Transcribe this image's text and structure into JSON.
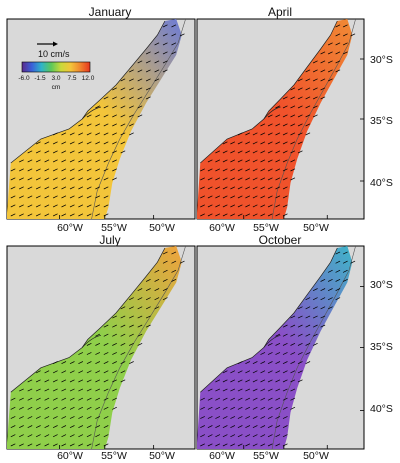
{
  "panels": [
    {
      "id": "january",
      "title": "January",
      "field_value_cm": 5.0,
      "field_color": "#f3c53a",
      "north_color": "#6c7bd6"
    },
    {
      "id": "april",
      "title": "April",
      "field_value_cm": 10.5,
      "field_color": "#f0522b",
      "north_color": "#f08a35"
    },
    {
      "id": "july",
      "title": "July",
      "field_value_cm": 0.5,
      "field_color": "#8fcf4a",
      "north_color": "#f0a23d"
    },
    {
      "id": "october",
      "title": "October",
      "field_value_cm": -5.5,
      "field_color": "#8a4fc7",
      "north_color": "#3fb5c9"
    }
  ],
  "longitude_ticks": [
    "60°W",
    "55°W",
    "50°W"
  ],
  "latitude_ticks": [
    "30°S",
    "35°S",
    "40°S"
  ],
  "scale_vector_label": "10 cm/s",
  "colorbar": {
    "tick_labels": [
      "-6.0",
      "-1.5",
      "3.0",
      "7.5",
      "12.0"
    ],
    "unit": "cm",
    "min": -6.0,
    "max": 12.0,
    "colors": [
      "#5b2a8c",
      "#3a5fd9",
      "#2fb4c9",
      "#5cc85a",
      "#c9d93a",
      "#f3c53a",
      "#f0852e",
      "#e8361f"
    ]
  },
  "colors": {
    "land": "#d9d9d9",
    "vector": "#000000",
    "isobath": "#555555"
  }
}
